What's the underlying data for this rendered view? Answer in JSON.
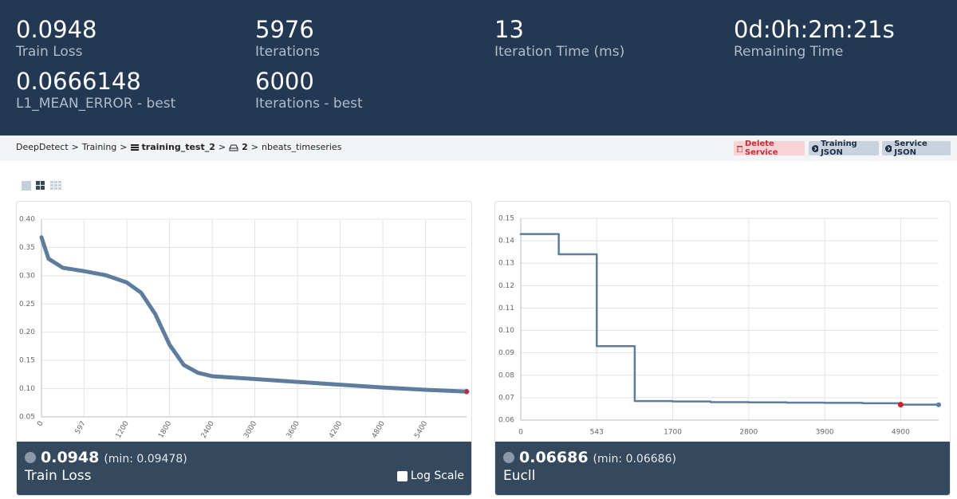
{
  "stats": [
    {
      "value": "0.0948",
      "label": "Train Loss"
    },
    {
      "value": "5976",
      "label": "Iterations"
    },
    {
      "value": "13",
      "label": "Iteration Time (ms)"
    },
    {
      "value": "0d:0h:2m:21s",
      "label": "Remaining Time"
    },
    {
      "value": "0.0666148",
      "label": "L1_MEAN_ERROR - best"
    },
    {
      "value": "6000",
      "label": "Iterations - best"
    }
  ],
  "breadcrumb": {
    "separator": ">",
    "items": [
      "DeepDetect",
      "Training",
      "training_test_2",
      "2",
      "nbeats_timeseries"
    ]
  },
  "buttons": [
    "Delete Service",
    "Training JSON",
    "Service JSON"
  ],
  "chart_data": [
    {
      "type": "line",
      "title": "Train Loss",
      "current": "0.0948",
      "min_text": "(min: 0.09478)",
      "log_scale_label": "Log Scale",
      "log_scale": false,
      "color": "#5e7d9c",
      "grid": true,
      "x": [
        0,
        100,
        300,
        600,
        900,
        1200,
        1400,
        1600,
        1800,
        2000,
        2200,
        2400,
        3000,
        3600,
        4200,
        4800,
        5400,
        5976
      ],
      "values": [
        0.368,
        0.33,
        0.314,
        0.308,
        0.301,
        0.288,
        0.27,
        0.232,
        0.178,
        0.142,
        0.128,
        0.122,
        0.117,
        0.112,
        0.107,
        0.102,
        0.098,
        0.0948
      ],
      "xlim": [
        0,
        5976
      ],
      "xticks": [
        0,
        597,
        1200,
        1800,
        2400,
        3000,
        3600,
        4200,
        4800,
        5400
      ],
      "ylim": [
        0.05,
        0.4
      ],
      "yticks": [
        0.05,
        {
          "value": 0.1,
          "label": "0.10"
        },
        0.15,
        {
          "value": 0.2,
          "label": "0.20"
        },
        0.25,
        {
          "value": 0.3,
          "label": "0.30"
        },
        0.35,
        {
          "value": 0.4,
          "label": "0.40"
        }
      ]
    },
    {
      "type": "line",
      "title": "Eucll",
      "current": "0.06686",
      "min_text": "(min: 0.06686)",
      "step": true,
      "color": "#5e7d9c",
      "grid": true,
      "categories": [
        "0",
        null,
        "543",
        null,
        "1700",
        null,
        "2800",
        null,
        "3900",
        null,
        "4900",
        null
      ],
      "values": [
        0.143,
        0.134,
        0.093,
        0.0685,
        0.0683,
        0.068,
        0.0679,
        0.0678,
        0.0677,
        0.0675,
        0.0669,
        0.06686
      ],
      "ylim": [
        0.06,
        0.15
      ],
      "yticks": [
        0.06,
        0.07,
        0.08,
        0.09,
        {
          "value": 0.1,
          "label": "0.10"
        },
        0.11,
        0.12,
        0.13,
        0.14,
        0.15
      ]
    }
  ]
}
